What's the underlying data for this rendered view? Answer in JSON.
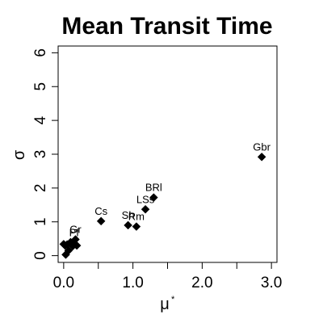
{
  "chart_data": {
    "type": "scatter",
    "title": "Mean Transit Time",
    "xlabel": "μ",
    "xlabel_superscript": "*",
    "ylabel": "σ",
    "xlim": [
      -0.08,
      3.08
    ],
    "ylim": [
      -0.2,
      6.2
    ],
    "xticks": [
      0.0,
      1.0,
      2.0,
      3.0
    ],
    "xtick_labels": [
      "0.0",
      "1.0",
      "2.0",
      "3.0"
    ],
    "xticks_minor": [
      0.5,
      1.5,
      2.5
    ],
    "yticks": [
      0,
      1,
      2,
      3,
      4,
      5,
      6
    ],
    "ytick_labels": [
      "0",
      "1",
      "2",
      "3",
      "4",
      "5",
      "6"
    ],
    "grid": false,
    "marker": "diamond",
    "marker_color": "#000000",
    "points": [
      {
        "x": 2.86,
        "y": 2.92,
        "label": "Gbr"
      },
      {
        "x": 1.3,
        "y": 1.72,
        "label": "BRl"
      },
      {
        "x": 1.18,
        "y": 1.37,
        "label": "LSs"
      },
      {
        "x": 0.54,
        "y": 1.02,
        "label": "Cs"
      },
      {
        "x": 0.93,
        "y": 0.9,
        "label": "Sh"
      },
      {
        "x": 1.05,
        "y": 0.86,
        "label": "Rm"
      },
      {
        "x": 0.17,
        "y": 0.48,
        "label": "Gr"
      },
      {
        "x": 0.15,
        "y": 0.38,
        "label": "Pf"
      },
      {
        "x": 0.19,
        "y": 0.3,
        "label": ""
      },
      {
        "x": 0.13,
        "y": 0.28,
        "label": ""
      },
      {
        "x": 0.1,
        "y": 0.4,
        "label": ""
      },
      {
        "x": 0.05,
        "y": 0.33,
        "label": ""
      },
      {
        "x": 0.02,
        "y": 0.3,
        "label": ""
      },
      {
        "x": 0.0,
        "y": 0.34,
        "label": ""
      },
      {
        "x": 0.07,
        "y": 0.15,
        "label": ""
      },
      {
        "x": 0.03,
        "y": 0.03,
        "label": ""
      }
    ]
  }
}
